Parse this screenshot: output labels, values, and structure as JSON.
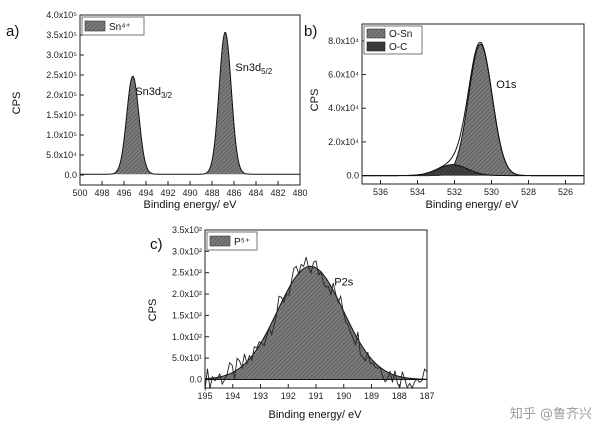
{
  "watermark": "知乎 @鲁齐兴",
  "chart_data": [
    {
      "id": "a",
      "panel_label": "a)",
      "type": "line",
      "xlabel": "Binding energy/ eV",
      "ylabel": "CPS",
      "xlim": [
        500,
        480
      ],
      "ylim": [
        -25000,
        400000
      ],
      "xticks": [
        "500",
        "498",
        "496",
        "494",
        "492",
        "490",
        "488",
        "486",
        "484",
        "482",
        "480"
      ],
      "yticks": [
        {
          "value": 0,
          "label": "0.0"
        },
        {
          "value": 50000,
          "label": "5.0x10⁴"
        },
        {
          "value": 100000,
          "label": "1.0x10⁵"
        },
        {
          "value": 150000,
          "label": "1.5x10⁵"
        },
        {
          "value": 200000,
          "label": "2.0x10⁵"
        },
        {
          "value": 250000,
          "label": "2.5x10⁵"
        },
        {
          "value": 300000,
          "label": "3.0x10⁵"
        },
        {
          "value": 350000,
          "label": "3.5x10⁵"
        },
        {
          "value": 400000,
          "label": "4.0x10⁵"
        }
      ],
      "legend": {
        "position": "top-left",
        "entries": [
          "Sn⁴⁺"
        ]
      },
      "series": [
        {
          "name": "Sn⁴⁺",
          "peaks": [
            {
              "center": 495.2,
              "height": 245000,
              "fwhm": 1.3
            },
            {
              "center": 486.8,
              "height": 355000,
              "fwhm": 1.3
            }
          ],
          "baseline": 2000
        }
      ],
      "annotations": [
        {
          "text": "Sn3d",
          "sub": "3/2",
          "x": 493.3,
          "y": 200000
        },
        {
          "text": "Sn3d",
          "sub": "5/2",
          "x": 484.2,
          "y": 260000
        }
      ]
    },
    {
      "id": "b",
      "panel_label": "b)",
      "type": "line",
      "xlabel": "Binding energy/ eV",
      "ylabel": "CPS",
      "xlim": [
        537,
        525
      ],
      "ylim": [
        -5000,
        90000
      ],
      "xticks": [
        "536",
        "534",
        "532",
        "530",
        "528",
        "526"
      ],
      "yticks": [
        {
          "value": 0,
          "label": "0.0"
        },
        {
          "value": 20000,
          "label": "2.0x10⁴"
        },
        {
          "value": 40000,
          "label": "4.0x10⁴"
        },
        {
          "value": 60000,
          "label": "6.0x10⁴"
        },
        {
          "value": 80000,
          "label": "8.0x10⁴"
        }
      ],
      "legend": {
        "position": "top-left",
        "entries": [
          "O-Sn",
          "O-C"
        ]
      },
      "series": [
        {
          "name": "O-Sn",
          "peaks": [
            {
              "center": 530.6,
              "height": 78000,
              "fwhm": 1.5
            }
          ],
          "baseline": 0
        },
        {
          "name": "O-C",
          "peaks": [
            {
              "center": 532.1,
              "height": 6500,
              "fwhm": 1.9
            }
          ],
          "baseline": 0
        }
      ],
      "annotations": [
        {
          "text": "O1s",
          "sub": "",
          "x": 529.2,
          "y": 52000
        }
      ]
    },
    {
      "id": "c",
      "panel_label": "c)",
      "type": "line",
      "xlabel": "Binding energy/ eV",
      "ylabel": "CPS",
      "xlim": [
        195,
        187
      ],
      "ylim": [
        -20,
        350
      ],
      "xticks": [
        "195",
        "194",
        "193",
        "192",
        "191",
        "190",
        "189",
        "188",
        "187"
      ],
      "yticks": [
        {
          "value": 0,
          "label": "0.0"
        },
        {
          "value": 50,
          "label": "5.0x10¹"
        },
        {
          "value": 100,
          "label": "1.0x10²"
        },
        {
          "value": 150,
          "label": "1.5x10²"
        },
        {
          "value": 200,
          "label": "2.0x10²"
        },
        {
          "value": 250,
          "label": "2.5x10²"
        },
        {
          "value": 300,
          "label": "3.0x10²"
        },
        {
          "value": 350,
          "label": "3.5x10²"
        }
      ],
      "legend": {
        "position": "top-left",
        "entries": [
          "P⁵⁺"
        ]
      },
      "series": [
        {
          "name": "P⁵⁺",
          "peaks": [
            {
              "center": 191.2,
              "height": 265,
              "fwhm": 2.8
            }
          ],
          "baseline": 0
        }
      ],
      "annotations": [
        {
          "text": "P2s",
          "sub": "",
          "x": 190.0,
          "y": 220
        }
      ]
    }
  ]
}
